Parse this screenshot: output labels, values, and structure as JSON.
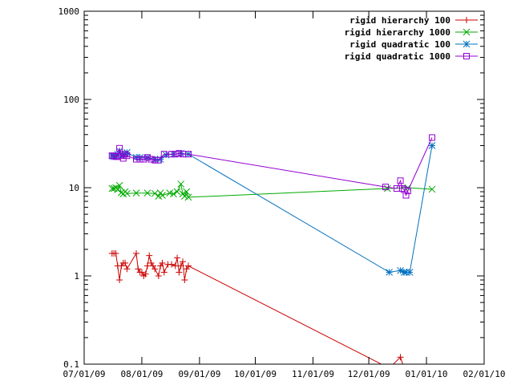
{
  "chart_data": {
    "type": "line",
    "title": "",
    "xlabel": "",
    "ylabel": "",
    "y_scale": "log",
    "ylim": [
      0.1,
      1000
    ],
    "xlim": [
      "07/01/09",
      "02/01/10"
    ],
    "grid": false,
    "legend_position": "top-right",
    "x_ticks": [
      "07/01/09",
      "08/01/09",
      "09/01/09",
      "10/01/09",
      "11/01/09",
      "12/01/09",
      "01/01/10",
      "02/01/10"
    ],
    "y_ticks": [
      "0.1",
      "1",
      "10",
      "100",
      "1000"
    ],
    "series": [
      {
        "name": "rigid hierarchy 100",
        "color": "#cc0000",
        "marker": "plus",
        "points": [
          [
            "2009-07-16",
            1.8
          ],
          [
            "2009-07-17",
            1.8
          ],
          [
            "2009-07-18",
            1.8
          ],
          [
            "2009-07-19",
            1.3
          ],
          [
            "2009-07-20",
            0.9
          ],
          [
            "2009-07-21",
            1.3
          ],
          [
            "2009-07-22",
            1.4
          ],
          [
            "2009-07-23",
            1.4
          ],
          [
            "2009-07-24",
            1.2
          ],
          [
            "2009-07-29",
            1.8
          ],
          [
            "2009-07-30",
            1.2
          ],
          [
            "2009-07-31",
            1.1
          ],
          [
            "2009-08-01",
            1.1
          ],
          [
            "2009-08-02",
            1.0
          ],
          [
            "2009-08-03",
            1.05
          ],
          [
            "2009-08-04",
            1.3
          ],
          [
            "2009-08-05",
            1.7
          ],
          [
            "2009-08-06",
            1.4
          ],
          [
            "2009-08-07",
            1.3
          ],
          [
            "2009-08-08",
            1.2
          ],
          [
            "2009-08-10",
            1.0
          ],
          [
            "2009-08-11",
            1.3
          ],
          [
            "2009-08-12",
            1.4
          ],
          [
            "2009-08-13",
            1.1
          ],
          [
            "2009-08-15",
            1.35
          ],
          [
            "2009-08-17",
            1.35
          ],
          [
            "2009-08-19",
            1.3
          ],
          [
            "2009-08-20",
            1.6
          ],
          [
            "2009-08-21",
            1.1
          ],
          [
            "2009-08-22",
            1.3
          ],
          [
            "2009-08-23",
            1.45
          ],
          [
            "2009-08-24",
            0.9
          ],
          [
            "2009-08-25",
            1.2
          ],
          [
            "2009-08-26",
            1.3
          ],
          [
            "2009-12-12",
            0.09
          ],
          [
            "2009-12-18",
            0.12
          ],
          [
            "2009-12-20",
            0.09
          ]
        ]
      },
      {
        "name": "rigid hierarchy 1000",
        "color": "#00aa00",
        "marker": "cross",
        "points": [
          [
            "2009-07-16",
            9.8
          ],
          [
            "2009-07-17",
            9.8
          ],
          [
            "2009-07-18",
            10.0
          ],
          [
            "2009-07-19",
            9.5
          ],
          [
            "2009-07-20",
            10.6
          ],
          [
            "2009-07-21",
            8.8
          ],
          [
            "2009-07-22",
            8.5
          ],
          [
            "2009-07-23",
            9.0
          ],
          [
            "2009-07-24",
            8.6
          ],
          [
            "2009-07-29",
            8.7
          ],
          [
            "2009-08-04",
            8.7
          ],
          [
            "2009-08-08",
            8.6
          ],
          [
            "2009-08-10",
            8.0
          ],
          [
            "2009-08-11",
            8.7
          ],
          [
            "2009-08-12",
            8.2
          ],
          [
            "2009-08-16",
            8.7
          ],
          [
            "2009-08-18",
            8.5
          ],
          [
            "2009-08-20",
            9.0
          ],
          [
            "2009-08-22",
            11.0
          ],
          [
            "2009-08-23",
            8.5
          ],
          [
            "2009-08-24",
            8.0
          ],
          [
            "2009-08-25",
            9.0
          ],
          [
            "2009-08-26",
            7.8
          ],
          [
            "2009-12-11",
            9.8
          ],
          [
            "2009-12-22",
            10.0
          ],
          [
            "2010-01-04",
            9.6
          ]
        ]
      },
      {
        "name": "rigid quadratic 100",
        "color": "#0070c0",
        "marker": "star",
        "points": [
          [
            "2009-07-16",
            23
          ],
          [
            "2009-07-17",
            22.5
          ],
          [
            "2009-07-18",
            22.5
          ],
          [
            "2009-07-19",
            24
          ],
          [
            "2009-07-20",
            26
          ],
          [
            "2009-07-21",
            23
          ],
          [
            "2009-07-22",
            23.5
          ],
          [
            "2009-07-23",
            24
          ],
          [
            "2009-07-24",
            25
          ],
          [
            "2009-07-29",
            22
          ],
          [
            "2009-07-31",
            22
          ],
          [
            "2009-08-04",
            22
          ],
          [
            "2009-08-08",
            21
          ],
          [
            "2009-08-11",
            21
          ],
          [
            "2009-08-14",
            23.5
          ],
          [
            "2009-08-18",
            24
          ],
          [
            "2009-08-22",
            24.5
          ],
          [
            "2009-08-26",
            24
          ],
          [
            "2009-12-12",
            1.1
          ],
          [
            "2009-12-18",
            1.15
          ],
          [
            "2009-12-20",
            1.1
          ],
          [
            "2009-12-21",
            1.1
          ],
          [
            "2009-12-23",
            1.1
          ],
          [
            "2010-01-04",
            30
          ]
        ]
      },
      {
        "name": "rigid quadratic 1000",
        "color": "#9400d3",
        "marker": "square",
        "points": [
          [
            "2009-07-16",
            23
          ],
          [
            "2009-07-17",
            23
          ],
          [
            "2009-07-18",
            22.5
          ],
          [
            "2009-07-19",
            22.5
          ],
          [
            "2009-07-20",
            28
          ],
          [
            "2009-07-21",
            23
          ],
          [
            "2009-07-22",
            21.5
          ],
          [
            "2009-07-23",
            24
          ],
          [
            "2009-07-24",
            23
          ],
          [
            "2009-07-29",
            21
          ],
          [
            "2009-07-31",
            21
          ],
          [
            "2009-08-02",
            21
          ],
          [
            "2009-08-04",
            22
          ],
          [
            "2009-08-06",
            21
          ],
          [
            "2009-08-08",
            20.5
          ],
          [
            "2009-08-10",
            20.5
          ],
          [
            "2009-08-13",
            24
          ],
          [
            "2009-08-17",
            24
          ],
          [
            "2009-08-19",
            24
          ],
          [
            "2009-08-21",
            24.5
          ],
          [
            "2009-08-23",
            24
          ],
          [
            "2009-08-26",
            24
          ],
          [
            "2009-12-10",
            10.2
          ],
          [
            "2009-12-16",
            9.8
          ],
          [
            "2009-12-18",
            12.0
          ],
          [
            "2009-12-19",
            9.8
          ],
          [
            "2009-12-20",
            9.5
          ],
          [
            "2009-12-21",
            8.2
          ],
          [
            "2009-12-22",
            9.2
          ],
          [
            "2010-01-04",
            37
          ]
        ]
      }
    ]
  }
}
